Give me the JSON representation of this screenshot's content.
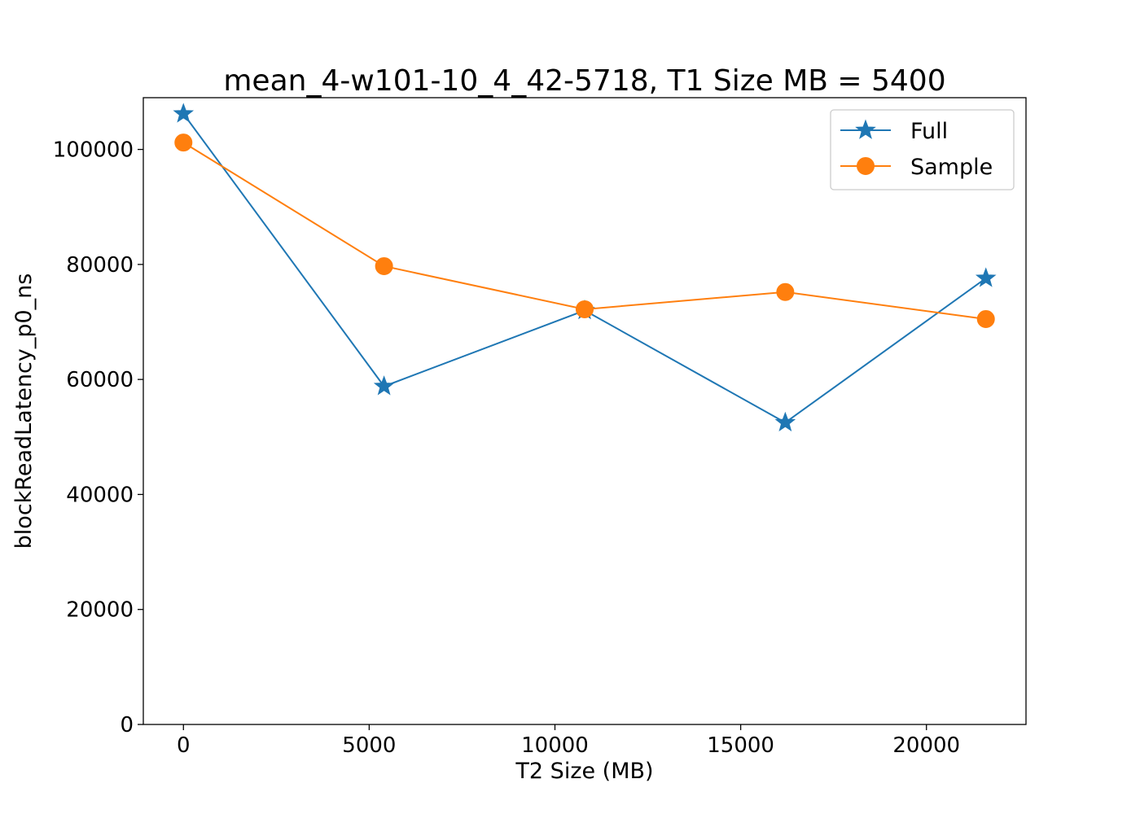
{
  "chart_data": {
    "type": "line",
    "title": "mean_4-w101-10_4_42-5718, T1 Size MB = 5400",
    "xlabel": "T2 Size (MB)",
    "ylabel": "blockReadLatency_p0_ns",
    "xlim": [
      -1080,
      22680
    ],
    "ylim": [
      0,
      109000
    ],
    "xticks": [
      0,
      5000,
      10000,
      15000,
      20000
    ],
    "yticks": [
      0,
      20000,
      40000,
      60000,
      80000,
      100000
    ],
    "grid": false,
    "legend_position": "top-right",
    "series": [
      {
        "name": "Full",
        "color": "#1f77b4",
        "marker": "star",
        "x": [
          0,
          5400,
          10800,
          16200,
          21600
        ],
        "y": [
          106200,
          58800,
          72000,
          52500,
          77600
        ]
      },
      {
        "name": "Sample",
        "color": "#ff7f0e",
        "marker": "circle",
        "x": [
          0,
          5400,
          10800,
          16200,
          21600
        ],
        "y": [
          101200,
          79700,
          72200,
          75200,
          70500
        ]
      }
    ]
  }
}
